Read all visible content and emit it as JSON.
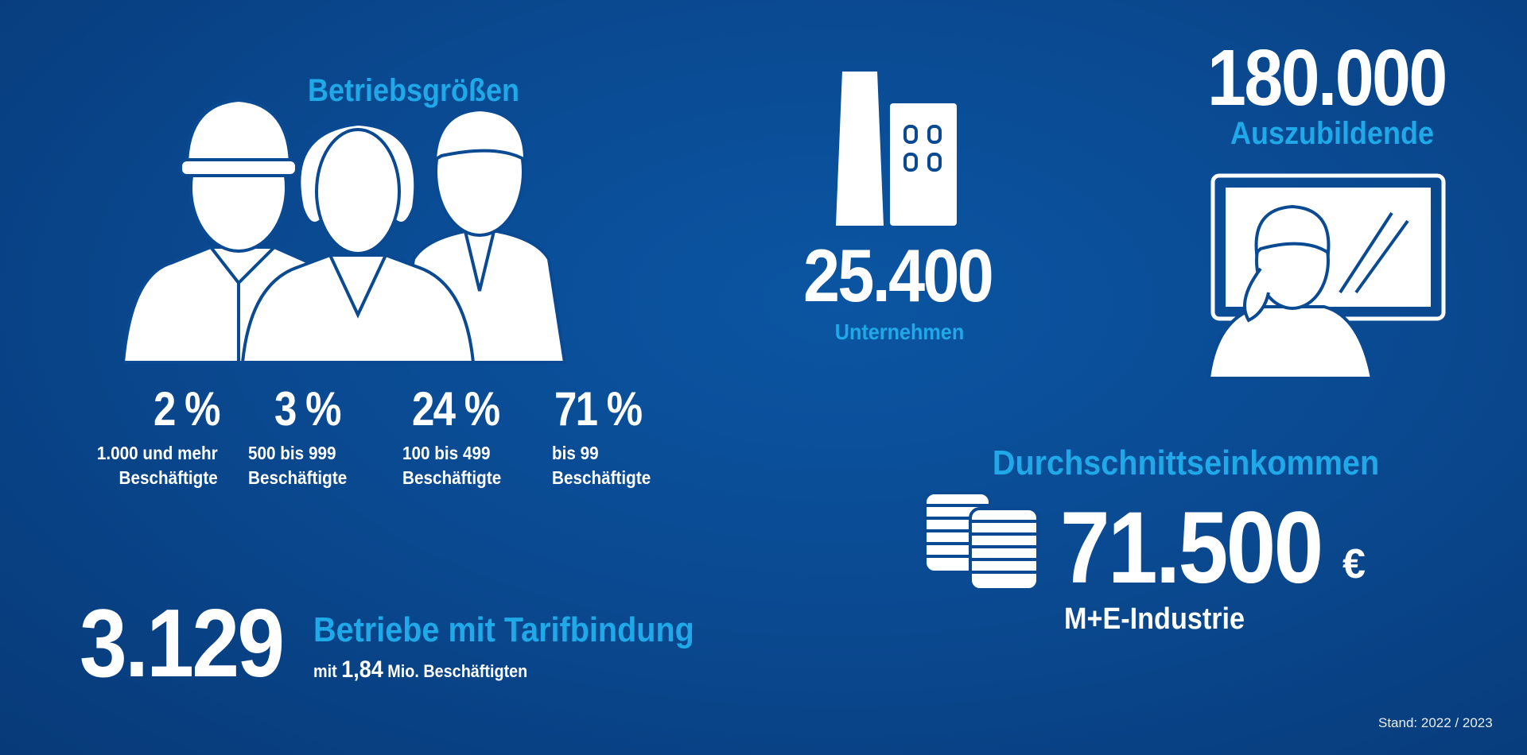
{
  "colors": {
    "accent": "#1fa9e8",
    "background": "#0a4a92",
    "text": "#ffffff"
  },
  "company_sizes": {
    "title": "Betriebsgrößen",
    "items": [
      {
        "percent": "2 %",
        "line1": "1.000 und mehr",
        "line2": "Beschäftigte"
      },
      {
        "percent": "3 %",
        "line1": "500 bis 999",
        "line2": "Beschäftigte"
      },
      {
        "percent": "24 %",
        "line1": "100 bis 499",
        "line2": "Beschäftigte"
      },
      {
        "percent": "71 %",
        "line1": "bis 99",
        "line2": "Beschäftigte"
      }
    ]
  },
  "collective": {
    "number": "3.129",
    "title": "Betriebe mit Tarifbindung",
    "sub_pre": "mit ",
    "sub_value": "1,84",
    "sub_post": " Mio. Beschäftigten"
  },
  "companies": {
    "number": "25.400",
    "label": "Unternehmen"
  },
  "apprentices": {
    "number": "180.000",
    "label": "Auszubildende"
  },
  "income": {
    "title": "Durchschnittseinkommen",
    "number": "71.500",
    "currency": "€",
    "label": "M+E-Industrie"
  },
  "footer": {
    "stand": "Stand: 2022 / 2023"
  }
}
